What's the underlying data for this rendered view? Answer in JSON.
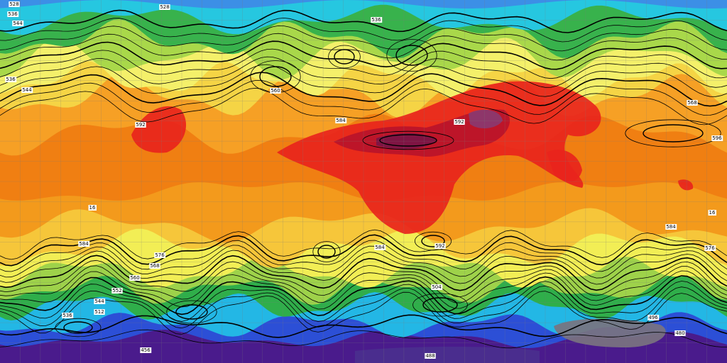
{
  "contour_labels": [
    "528",
    "536",
    "544",
    "528",
    "536",
    "544",
    "592",
    "584",
    "592",
    "596",
    "584",
    "584",
    "592",
    "576",
    "568",
    "560",
    "552",
    "544",
    "536",
    "512",
    "504",
    "496",
    "488",
    "480",
    "456",
    "560",
    "536",
    "576",
    "16",
    "16",
    "568",
    "584"
  ]
}
